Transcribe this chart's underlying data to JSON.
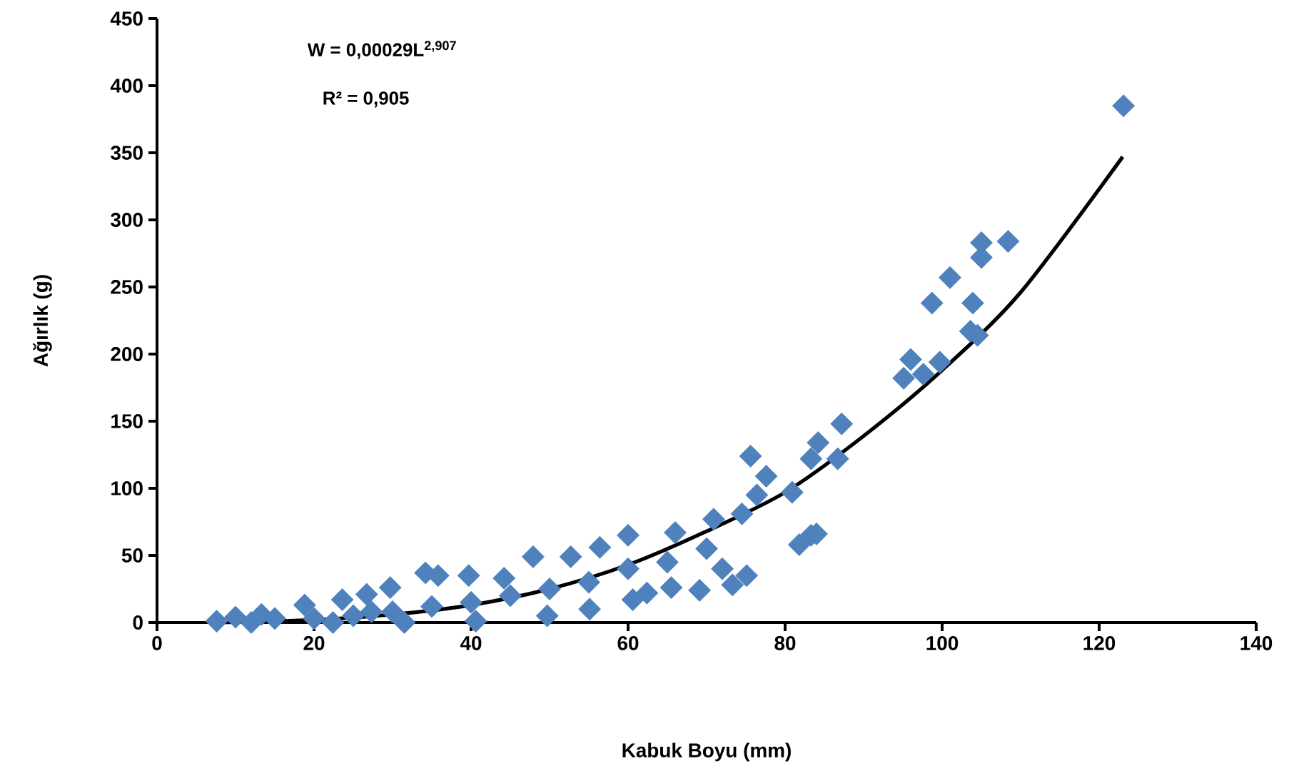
{
  "chart_data": {
    "type": "scatter",
    "xlabel": "Kabuk Boyu (mm)",
    "ylabel": "Ağırlık (g)",
    "annotations": [
      "W = 0,00029L$^{2,907}$",
      "R² = 0,905"
    ],
    "xlim": [
      0,
      140
    ],
    "ylim": [
      0,
      450
    ],
    "xticks": [
      0,
      20,
      40,
      60,
      80,
      100,
      120,
      140
    ],
    "yticks": [
      0,
      50,
      100,
      150,
      200,
      250,
      300,
      350,
      400,
      450
    ],
    "marker": "diamond",
    "series": [
      {
        "color": "#4f81bd",
        "x": [
          7.6,
          10,
          12,
          13.3,
          15,
          18.8,
          20,
          22.4,
          23.6,
          25,
          26.7,
          27.3,
          29.7,
          30,
          31.5,
          34.2,
          35,
          35.8,
          39.7,
          40,
          40.6,
          44.2,
          45,
          47.9,
          49.7,
          50,
          52.7,
          55,
          55.1,
          56.4,
          60,
          60,
          60.6,
          62.4,
          65,
          65.5,
          66,
          69.1,
          70,
          70.9,
          72,
          73.3,
          74.5,
          75.1,
          75.6,
          76.4,
          77.6,
          80.9,
          81.8,
          83.3,
          83.3,
          84,
          84.2,
          86.7,
          87.2,
          95.1,
          96,
          97.6,
          98.7,
          99.7,
          101,
          103.6,
          103.9,
          104.5,
          105,
          105,
          108.4,
          123.1
        ],
        "values": [
          1,
          4,
          0,
          6,
          3,
          13,
          3,
          0,
          17,
          5,
          21,
          8,
          26,
          8,
          0,
          37,
          12,
          35,
          35,
          15,
          1,
          33,
          20,
          49,
          5,
          25,
          49,
          30,
          10,
          56,
          40,
          65,
          17,
          22,
          45,
          26,
          67,
          24,
          55,
          77,
          40,
          28,
          81,
          35,
          124,
          95,
          109,
          97,
          58,
          65,
          122,
          66,
          134,
          122,
          148,
          182,
          196,
          185,
          238,
          194,
          257,
          217,
          238,
          214,
          283,
          272,
          284,
          385
        ]
      },
      {
        "type": "line",
        "marker": "none",
        "color": "#000000",
        "x": [
          8,
          20,
          30,
          40,
          50,
          60,
          70,
          80,
          90,
          100,
          110,
          123
        ],
        "values": [
          0,
          2,
          6,
          13,
          25,
          43,
          68,
          97,
          139,
          188,
          246,
          347
        ]
      }
    ]
  }
}
